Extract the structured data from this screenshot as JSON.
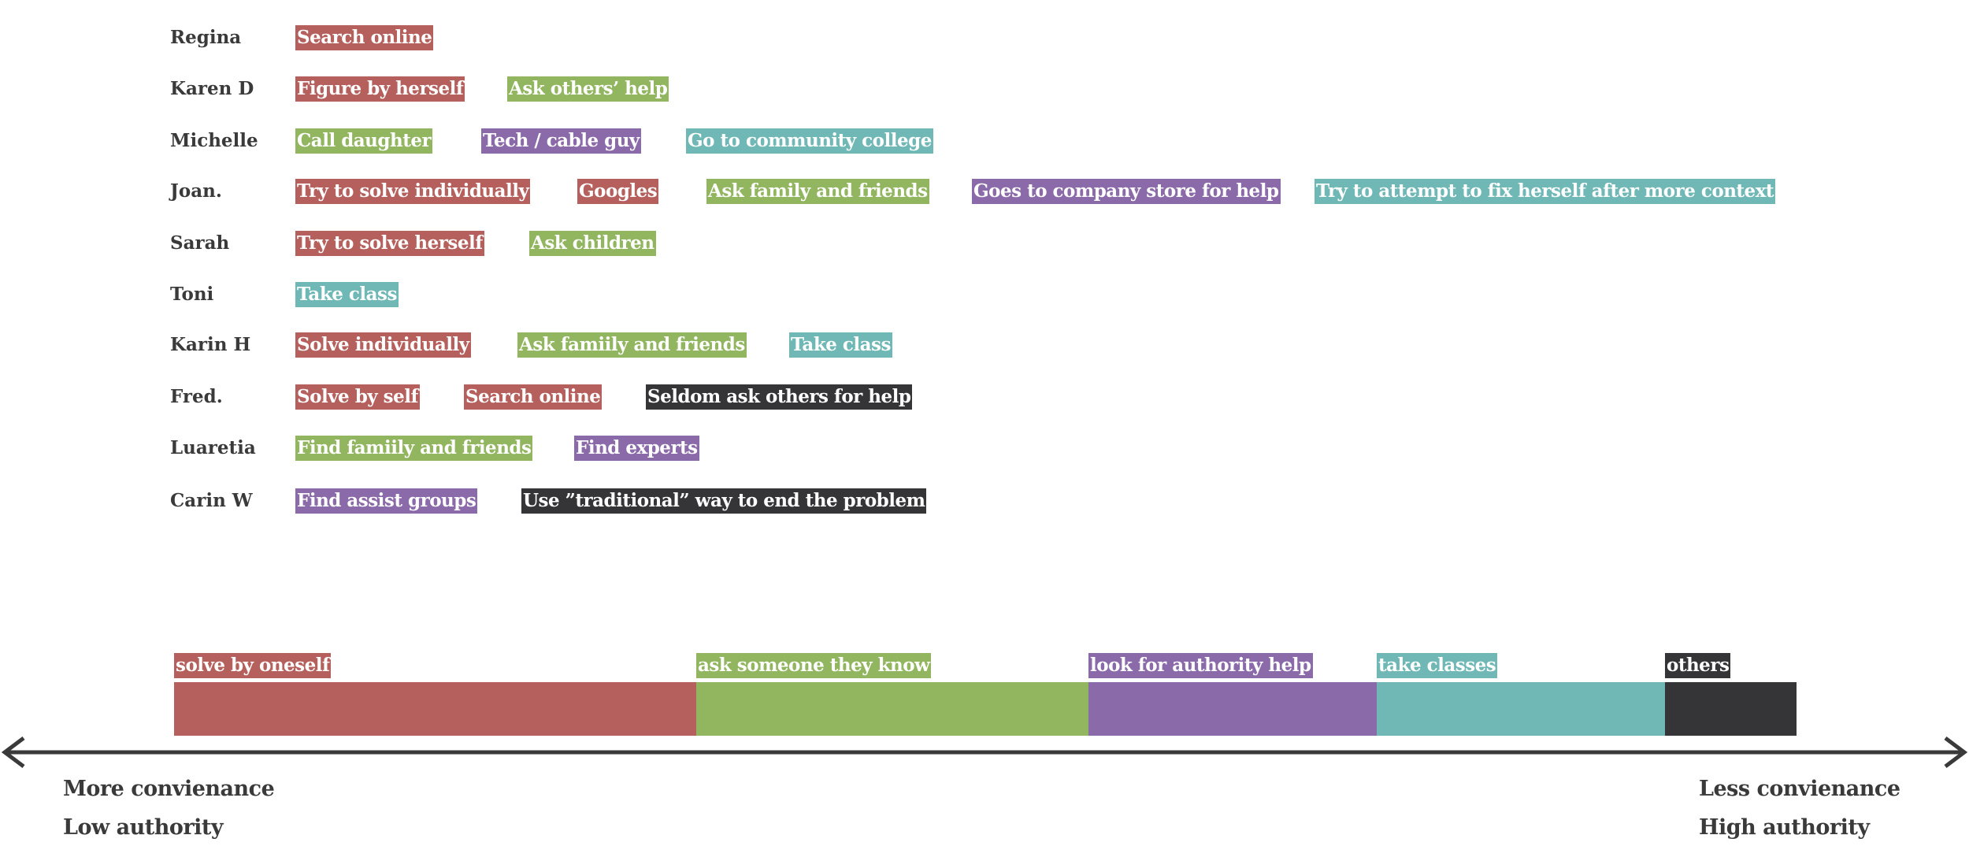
{
  "colors": {
    "solve": "#b5605d",
    "ask": "#92b660",
    "authority": "#8b6aaa",
    "classes": "#6fb8b6",
    "others": "#353538",
    "text": "#3a3a3a"
  },
  "people": [
    {
      "name": "Regina",
      "tags": [
        {
          "label": "Search online",
          "category": "solve"
        }
      ]
    },
    {
      "name": "Karen D",
      "tags": [
        {
          "label": "Figure by herself",
          "category": "solve"
        },
        {
          "label": "Ask others’ help",
          "category": "ask"
        }
      ]
    },
    {
      "name": "Michelle",
      "tags": [
        {
          "label": "Call  daughter",
          "category": "ask"
        },
        {
          "label": "Tech / cable guy",
          "category": "authority"
        },
        {
          "label": "Go to community college",
          "category": "classes"
        }
      ]
    },
    {
      "name": "Joan.",
      "tags": [
        {
          "label": "Try to solve individually",
          "category": "solve"
        },
        {
          "label": "Googles",
          "category": "solve"
        },
        {
          "label": "Ask family and friends",
          "category": "ask"
        },
        {
          "label": "Goes to company store for help",
          "category": "authority"
        },
        {
          "label": "Try to attempt to fix herself after more context",
          "category": "classes"
        }
      ]
    },
    {
      "name": "Sarah",
      "tags": [
        {
          "label": "Try to solve herself",
          "category": "solve"
        },
        {
          "label": "Ask children",
          "category": "ask"
        }
      ]
    },
    {
      "name": "Toni",
      "tags": [
        {
          "label": "Take class",
          "category": "classes"
        }
      ]
    },
    {
      "name": "Karin H",
      "tags": [
        {
          "label": "Solve individually",
          "category": "solve"
        },
        {
          "label": "Ask famiily and friends",
          "category": "ask"
        },
        {
          "label": "Take class",
          "category": "classes"
        }
      ]
    },
    {
      "name": "Fred.",
      "tags": [
        {
          "label": "Solve by self",
          "category": "solve"
        },
        {
          "label": "Search online",
          "category": "solve"
        },
        {
          "label": "Seldom ask others for help",
          "category": "others"
        }
      ]
    },
    {
      "name": "Luaretia",
      "tags": [
        {
          "label": "Find famiily and friends",
          "category": "ask"
        },
        {
          "label": "Find experts",
          "category": "authority"
        }
      ]
    },
    {
      "name": "Carin W",
      "tags": [
        {
          "label": "Find assist groups",
          "category": "authority"
        },
        {
          "label": "Use ”traditional” way to end the problem",
          "category": "others"
        }
      ]
    }
  ],
  "spectrum": [
    {
      "label": "solve by oneself",
      "category": "solve"
    },
    {
      "label": "ask someone they know",
      "category": "ask"
    },
    {
      "label": "look for authority help",
      "category": "authority"
    },
    {
      "label": "take classes",
      "category": "classes"
    },
    {
      "label": "others",
      "category": "others"
    }
  ],
  "axis": {
    "left_line1": "More convienance",
    "left_line2": "Low authority",
    "right_line1": "Less convienance",
    "right_line2": "High authority"
  }
}
